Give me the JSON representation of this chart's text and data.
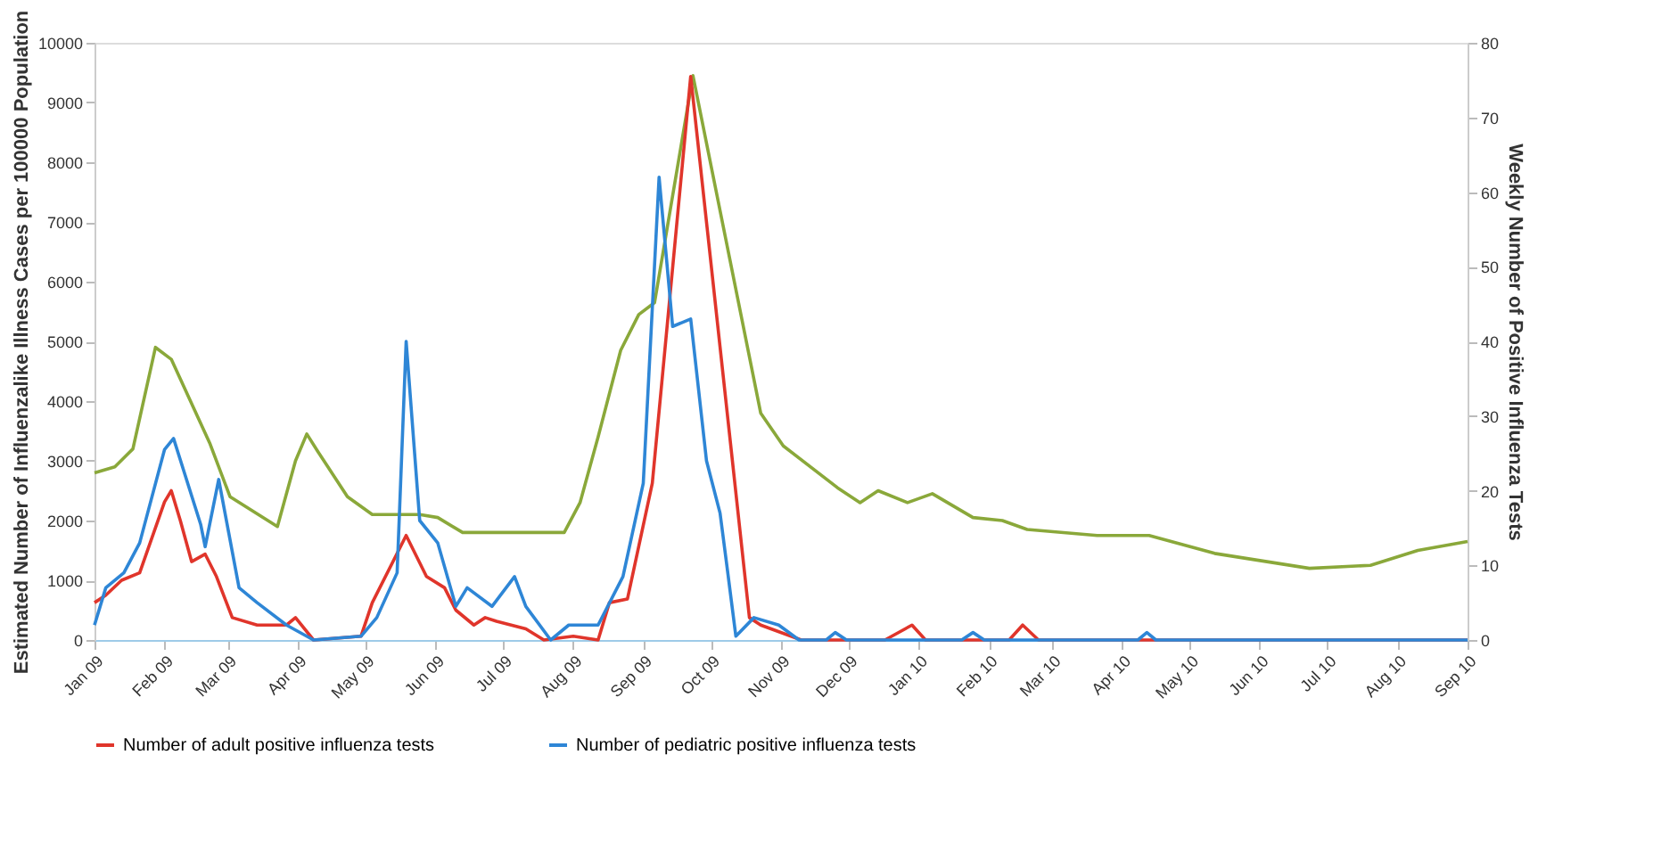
{
  "chart_data": {
    "type": "line",
    "ylabel": "Estimated Number of Influenzalike Illness Cases per 100000 Population",
    "y2label": "Weekly Number of Positive Influenza Tests",
    "xlim": [
      "2009-01-01",
      "2010-09-01"
    ],
    "xticks": [
      {
        "value": "2009-01-01",
        "label": "Jan 09"
      },
      {
        "value": "2009-02-01",
        "label": "Feb 09"
      },
      {
        "value": "2009-03-01",
        "label": "Mar 09"
      },
      {
        "value": "2009-04-01",
        "label": "Apr 09"
      },
      {
        "value": "2009-05-01",
        "label": "May 09"
      },
      {
        "value": "2009-06-01",
        "label": "Jun 09"
      },
      {
        "value": "2009-07-01",
        "label": "Jul 09"
      },
      {
        "value": "2009-08-01",
        "label": "Aug 09"
      },
      {
        "value": "2009-09-01",
        "label": "Sep 09"
      },
      {
        "value": "2009-10-01",
        "label": "Oct 09"
      },
      {
        "value": "2009-11-01",
        "label": "Nov 09"
      },
      {
        "value": "2009-12-01",
        "label": "Dec 09"
      },
      {
        "value": "2010-01-01",
        "label": "Jan 10"
      },
      {
        "value": "2010-02-01",
        "label": "Feb 10"
      },
      {
        "value": "2010-03-01",
        "label": "Mar 10"
      },
      {
        "value": "2010-04-01",
        "label": "Apr 10"
      },
      {
        "value": "2010-05-01",
        "label": "May 10"
      },
      {
        "value": "2010-06-01",
        "label": "Jun 10"
      },
      {
        "value": "2010-07-01",
        "label": "Jul 10"
      },
      {
        "value": "2010-08-01",
        "label": "Aug 10"
      },
      {
        "value": "2010-09-01",
        "label": "Sep 10"
      }
    ],
    "ylim": [
      0,
      10000
    ],
    "yticks": [
      0,
      1000,
      2000,
      3000,
      4000,
      5000,
      6000,
      7000,
      8000,
      9000,
      10000
    ],
    "y2lim": [
      0,
      80
    ],
    "y2ticks": [
      0,
      10,
      20,
      30,
      40,
      50,
      60,
      70,
      80
    ],
    "grid": false,
    "legend": "bottom",
    "marker": "none",
    "line_style": "solid",
    "series": [
      {
        "color": "#8aa83a",
        "x": [
          "2009-01-01",
          "2009-01-10",
          "2009-01-18",
          "2009-01-28",
          "2009-02-04",
          "2009-02-21",
          "2009-03-02",
          "2009-03-23",
          "2009-03-31",
          "2009-04-05",
          "2009-04-10",
          "2009-04-23",
          "2009-05-04",
          "2009-05-25",
          "2009-06-02",
          "2009-06-13",
          "2009-07-28",
          "2009-08-04",
          "2009-08-12",
          "2009-08-22",
          "2009-08-30",
          "2009-09-06",
          "2009-09-23",
          "2009-10-23",
          "2009-11-02",
          "2009-11-26",
          "2009-12-06",
          "2009-12-14",
          "2009-12-27",
          "2010-01-07",
          "2010-01-25",
          "2010-02-07",
          "2010-02-18",
          "2010-03-21",
          "2010-04-13",
          "2010-05-12",
          "2010-06-23",
          "2010-07-20",
          "2010-08-10",
          "2010-09-01"
        ],
        "values": [
          2800,
          2900,
          3200,
          4900,
          4700,
          3300,
          2400,
          1900,
          3000,
          3450,
          3150,
          2400,
          2100,
          2100,
          2050,
          1800,
          1800,
          2300,
          3400,
          4850,
          5450,
          5650,
          9450,
          3800,
          3250,
          2550,
          2300,
          2500,
          2300,
          2450,
          2050,
          2000,
          1850,
          1750,
          1750,
          1450,
          1200,
          1250,
          1500,
          1650
        ]
      },
      {
        "name": "Number of adult positive influenza tests",
        "color": "#e0352b",
        "axis": "y2",
        "x": [
          "2009-01-01",
          "2009-01-06",
          "2009-01-13",
          "2009-01-21",
          "2009-02-01",
          "2009-02-04",
          "2009-02-08",
          "2009-02-13",
          "2009-02-19",
          "2009-02-24",
          "2009-03-03",
          "2009-03-14",
          "2009-03-27",
          "2009-03-31",
          "2009-04-08",
          "2009-04-29",
          "2009-05-04",
          "2009-05-19",
          "2009-05-28",
          "2009-06-05",
          "2009-06-10",
          "2009-06-18",
          "2009-06-23",
          "2009-06-28",
          "2009-07-11",
          "2009-07-19",
          "2009-08-01",
          "2009-08-12",
          "2009-08-17",
          "2009-08-25",
          "2009-09-05",
          "2009-09-22",
          "2009-10-18",
          "2009-10-23",
          "2009-11-10",
          "2009-12-17",
          "2009-12-29",
          "2010-01-04",
          "2010-02-10",
          "2010-02-16",
          "2010-02-23",
          "2010-09-01"
        ],
        "values": [
          5,
          6,
          8,
          9,
          18.5,
          20,
          16,
          10.5,
          11.5,
          8.5,
          3,
          2,
          2,
          3,
          0,
          0.5,
          5,
          14,
          8.5,
          7,
          4,
          2,
          3,
          2.5,
          1.5,
          0,
          0.5,
          0,
          5,
          5.5,
          21,
          75.5,
          3,
          2,
          0,
          0,
          2,
          0,
          0,
          2,
          0,
          0
        ]
      },
      {
        "name": "Number of pediatric positive influenza tests",
        "color": "#2e86d6",
        "axis": "y2",
        "x": [
          "2009-01-01",
          "2009-01-06",
          "2009-01-14",
          "2009-01-21",
          "2009-02-01",
          "2009-02-05",
          "2009-02-17",
          "2009-02-19",
          "2009-02-25",
          "2009-03-06",
          "2009-03-14",
          "2009-03-27",
          "2009-04-08",
          "2009-04-29",
          "2009-05-06",
          "2009-05-15",
          "2009-05-19",
          "2009-05-25",
          "2009-06-02",
          "2009-06-10",
          "2009-06-15",
          "2009-06-26",
          "2009-07-06",
          "2009-07-11",
          "2009-07-22",
          "2009-07-30",
          "2009-08-12",
          "2009-08-23",
          "2009-09-01",
          "2009-09-08",
          "2009-09-14",
          "2009-09-22",
          "2009-09-29",
          "2009-10-05",
          "2009-10-08",
          "2009-10-12",
          "2009-10-20",
          "2009-10-31",
          "2009-11-09",
          "2009-11-21",
          "2009-11-25",
          "2009-11-30",
          "2010-01-20",
          "2010-01-25",
          "2010-01-30",
          "2010-04-08",
          "2010-04-12",
          "2010-04-16",
          "2010-09-01"
        ],
        "values": [
          2,
          7,
          9,
          13,
          25.5,
          27,
          15.5,
          12.5,
          21.5,
          7,
          5,
          2,
          0,
          0.5,
          3,
          9,
          40,
          16,
          13,
          4.5,
          7,
          4.5,
          8.5,
          4.5,
          0,
          2,
          2,
          8.5,
          21,
          62,
          42,
          43,
          24,
          17,
          10,
          0.5,
          3,
          2,
          0,
          0,
          1,
          0,
          0,
          1,
          0,
          0,
          1,
          0,
          0
        ]
      }
    ]
  }
}
